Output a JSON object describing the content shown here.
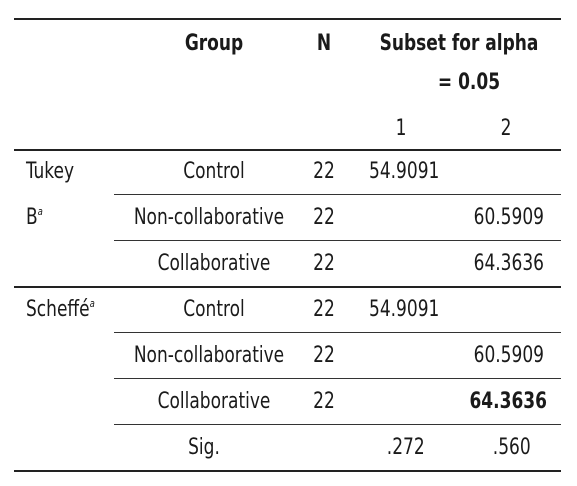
{
  "header": {
    "group": "Group",
    "n": "N",
    "subset_line1": "Subset for alpha",
    "subset_line2": "= 0.05",
    "sub1": "1",
    "sub2": "2"
  },
  "tukey": {
    "label_line1": "Tukey",
    "label_line2": "B",
    "sup": "a",
    "rows": [
      {
        "group": "Control",
        "n": "22",
        "s1": "54.9091",
        "s2": ""
      },
      {
        "group": "Non-collaborative",
        "n": "22",
        "s1": "",
        "s2": "60.5909"
      },
      {
        "group": "Collaborative",
        "n": "22",
        "s1": "",
        "s2": "64.3636"
      }
    ]
  },
  "scheffe": {
    "label": "Scheffé",
    "sup": "a",
    "rows": [
      {
        "group": "Control",
        "n": "22",
        "s1": "54.9091",
        "s2": ""
      },
      {
        "group": "Non-collaborative",
        "n": "22",
        "s1": "",
        "s2": "60.5909"
      },
      {
        "group": "Collaborative",
        "n": "22",
        "s1": "",
        "s2": "64.3636"
      }
    ],
    "sig_label": "Sig.",
    "sig1": ".272",
    "sig2": ".560"
  }
}
